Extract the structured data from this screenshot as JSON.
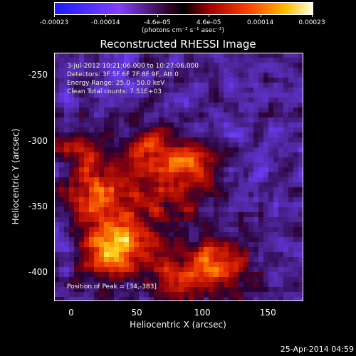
{
  "title": "Reconstructed RHESSI Image",
  "colorbar": {
    "ticks": [
      "-0.00023",
      "-0.00014",
      "-4.6e-05",
      "4.6e-05",
      "0.00014",
      "0.00023"
    ],
    "units": "(photons cm⁻² s⁻¹ asec⁻²)",
    "range": [
      -0.00023,
      0.00023
    ]
  },
  "info": {
    "time": "3-Jul-2012 10:21:06.000 to 10:27:06.000",
    "detectors": "Detectors: 3F 5F 6F 7F 8F 9F, Att 0",
    "energy": "Energy Range: 25.0 - 50.0 keV",
    "clean": "Clean     Total counts: 7.51E+03"
  },
  "peak": "Position of Peak = [34,-383]",
  "timestamp": "25-Apr-2014 04:59",
  "chart_data": {
    "type": "heatmap",
    "title": "Reconstructed RHESSI Image",
    "xlabel": "Heliocentric X (arcsec)",
    "ylabel": "Heliocentric Y (arcsec)",
    "xlim": [
      -13,
      177
    ],
    "ylim": [
      -422,
      -233
    ],
    "xticks": [
      "0",
      "50",
      "100",
      "150"
    ],
    "yticks": [
      "-250",
      "-300",
      "-350",
      "-400"
    ],
    "peak_position": [
      34,
      -383
    ],
    "value_range": [
      -0.00023,
      0.00023
    ],
    "sources": [
      {
        "x": 34,
        "y": -383,
        "peak": 0.00023
      },
      {
        "x": 20,
        "y": -345,
        "peak": 0.00016
      },
      {
        "x": 60,
        "y": -310,
        "peak": 0.00015
      },
      {
        "x": 95,
        "y": -320,
        "peak": 0.00013
      },
      {
        "x": 115,
        "y": -395,
        "peak": 0.00017
      },
      {
        "x": 70,
        "y": -350,
        "peak": 0.00012
      },
      {
        "x": 5,
        "y": -310,
        "peak": 0.0001
      },
      {
        "x": 80,
        "y": -400,
        "peak": 0.00011
      }
    ]
  }
}
